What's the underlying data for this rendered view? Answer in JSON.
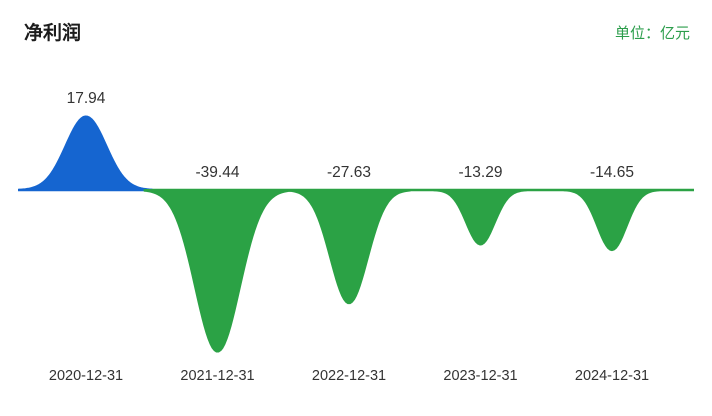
{
  "header": {
    "title": "净利润",
    "unit_label": "单位：亿元"
  },
  "chart_data": {
    "type": "area",
    "title": "净利润",
    "unit": "亿元",
    "categories": [
      "2020-12-31",
      "2021-12-31",
      "2022-12-31",
      "2023-12-31",
      "2024-12-31"
    ],
    "values": [
      17.94,
      -39.44,
      -27.63,
      -13.29,
      -14.65
    ],
    "value_labels": [
      "17.94",
      "-39.44",
      "-27.63",
      "-13.29",
      "-14.65"
    ],
    "positive_color": "#1565d0",
    "negative_color": "#2ba245",
    "baseline_value": 0,
    "ylim": [
      -45,
      25
    ],
    "grid": false,
    "legend": false,
    "label_color": "#333333"
  }
}
